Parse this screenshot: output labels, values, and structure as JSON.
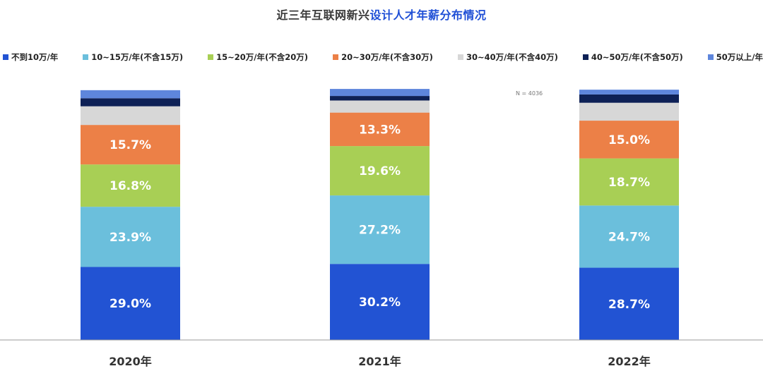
{
  "title": {
    "prefix": "近三年互联网新兴",
    "highlight": "设计人才年薪分布情况"
  },
  "note": "N = 4036",
  "colors": {
    "accent": "#1f4fd6"
  },
  "chart_data": {
    "type": "bar",
    "stacked": true,
    "categories": [
      "2020年",
      "2021年",
      "2022年"
    ],
    "ylim": [
      0,
      100
    ],
    "legend_position": "top",
    "grid": false,
    "series": [
      {
        "name": "不到10万/年",
        "color": "#2253d3",
        "values": [
          29.0,
          30.2,
          28.7
        ],
        "labels": [
          "29.0%",
          "30.2%",
          "28.7%"
        ]
      },
      {
        "name": "10~15万/年(不含15万)",
        "color": "#6bbfdc",
        "values": [
          23.9,
          27.2,
          24.7
        ],
        "labels": [
          "23.9%",
          "27.2%",
          "24.7%"
        ]
      },
      {
        "name": "15~20万/年(不含20万)",
        "color": "#a8cf55",
        "values": [
          16.8,
          19.6,
          18.7
        ],
        "labels": [
          "16.8%",
          "19.6%",
          "18.7%"
        ]
      },
      {
        "name": "20~30万/年(不含30万)",
        "color": "#ec8047",
        "values": [
          15.7,
          13.3,
          15.0
        ],
        "labels": [
          "15.7%",
          "13.3%",
          "15.0%"
        ]
      },
      {
        "name": "30~40万/年(不含40万)",
        "color": "#d7d7d7",
        "values": [
          7.4,
          4.8,
          7.1
        ],
        "labels": [
          "",
          "",
          ""
        ]
      },
      {
        "name": "40~50万/年(不含50万)",
        "color": "#0e2156",
        "values": [
          3.2,
          1.8,
          3.3
        ],
        "labels": [
          "",
          "",
          ""
        ]
      },
      {
        "name": "50万以上/年",
        "color": "#5e86dc",
        "values": [
          3.2,
          2.8,
          1.9
        ],
        "labels": [
          "",
          "",
          ""
        ]
      }
    ]
  }
}
